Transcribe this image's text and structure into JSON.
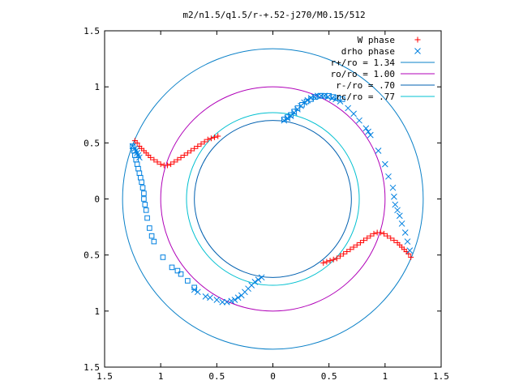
{
  "chart_data": {
    "type": "scatter",
    "title": "m2/n1.5/q1.5/r-+.52-j270/M0.15/512",
    "xlim": [
      -1.5,
      1.5
    ],
    "ylim": [
      -1.5,
      1.5
    ],
    "x_ticks": [
      -1.5,
      -1,
      -0.5,
      0,
      0.5,
      1,
      1.5
    ],
    "y_ticks": [
      -1.5,
      -1,
      -0.5,
      0,
      0.5,
      1,
      1.5
    ],
    "x_tick_labels": [
      "1.5",
      "1",
      "0.5",
      "0",
      "0.5",
      "1",
      "1.5"
    ],
    "y_tick_labels": [
      "1.5",
      "1",
      "0.5",
      "0",
      "0.5",
      "1",
      "1.5"
    ],
    "grid": false,
    "legend_position": "top-right",
    "series": [
      {
        "name": "W phase",
        "marker": "plus",
        "color": "#ff0000",
        "points": [
          [
            -1.23,
            0.52
          ],
          [
            -1.21,
            0.5
          ],
          [
            -1.19,
            0.47
          ],
          [
            -1.17,
            0.45
          ],
          [
            -1.15,
            0.43
          ],
          [
            -1.13,
            0.41
          ],
          [
            -1.11,
            0.39
          ],
          [
            -1.09,
            0.37
          ],
          [
            -1.06,
            0.35
          ],
          [
            -1.03,
            0.33
          ],
          [
            -1.0,
            0.31
          ],
          [
            -0.97,
            0.3
          ],
          [
            -0.94,
            0.3
          ],
          [
            -0.91,
            0.31
          ],
          [
            -0.88,
            0.33
          ],
          [
            -0.85,
            0.35
          ],
          [
            -0.82,
            0.37
          ],
          [
            -0.79,
            0.39
          ],
          [
            -0.76,
            0.41
          ],
          [
            -0.73,
            0.43
          ],
          [
            -0.7,
            0.45
          ],
          [
            -0.67,
            0.47
          ],
          [
            -0.64,
            0.49
          ],
          [
            -0.61,
            0.51
          ],
          [
            -0.58,
            0.53
          ],
          [
            -0.55,
            0.54
          ],
          [
            -0.52,
            0.55
          ],
          [
            -0.49,
            0.56
          ],
          [
            1.23,
            -0.52
          ],
          [
            1.21,
            -0.49
          ],
          [
            1.19,
            -0.47
          ],
          [
            1.17,
            -0.45
          ],
          [
            1.15,
            -0.43
          ],
          [
            1.13,
            -0.41
          ],
          [
            1.11,
            -0.39
          ],
          [
            1.08,
            -0.37
          ],
          [
            1.05,
            -0.35
          ],
          [
            1.02,
            -0.33
          ],
          [
            0.99,
            -0.31
          ],
          [
            0.96,
            -0.3
          ],
          [
            0.93,
            -0.3
          ],
          [
            0.9,
            -0.31
          ],
          [
            0.87,
            -0.33
          ],
          [
            0.84,
            -0.35
          ],
          [
            0.81,
            -0.37
          ],
          [
            0.78,
            -0.39
          ],
          [
            0.75,
            -0.41
          ],
          [
            0.72,
            -0.43
          ],
          [
            0.69,
            -0.45
          ],
          [
            0.66,
            -0.47
          ],
          [
            0.63,
            -0.49
          ],
          [
            0.6,
            -0.51
          ],
          [
            0.57,
            -0.53
          ],
          [
            0.54,
            -0.54
          ],
          [
            0.51,
            -0.55
          ],
          [
            0.48,
            -0.56
          ],
          [
            0.45,
            -0.57
          ]
        ]
      },
      {
        "name": "drho phase",
        "marker": "cross",
        "color": "#0080e0",
        "points": [
          [
            0.1,
            0.7
          ],
          [
            0.13,
            0.72
          ],
          [
            0.16,
            0.74
          ],
          [
            0.19,
            0.77
          ],
          [
            0.22,
            0.8
          ],
          [
            0.25,
            0.83
          ],
          [
            0.28,
            0.86
          ],
          [
            0.31,
            0.88
          ],
          [
            0.34,
            0.9
          ],
          [
            0.37,
            0.91
          ],
          [
            0.4,
            0.92
          ],
          [
            0.43,
            0.92
          ],
          [
            0.46,
            0.92
          ],
          [
            0.49,
            0.91
          ],
          [
            0.53,
            0.9
          ],
          [
            0.56,
            0.89
          ],
          [
            0.6,
            0.87
          ],
          [
            0.67,
            0.81
          ],
          [
            0.72,
            0.76
          ],
          [
            0.77,
            0.7
          ],
          [
            0.83,
            0.63
          ],
          [
            0.85,
            0.6
          ],
          [
            0.87,
            0.57
          ],
          [
            0.94,
            0.43
          ],
          [
            1.0,
            0.31
          ],
          [
            1.03,
            0.2
          ],
          [
            1.07,
            0.1
          ],
          [
            1.08,
            0.02
          ],
          [
            1.09,
            -0.05
          ],
          [
            1.11,
            -0.1
          ],
          [
            1.13,
            -0.15
          ],
          [
            1.15,
            -0.22
          ],
          [
            1.18,
            -0.3
          ],
          [
            1.2,
            -0.38
          ],
          [
            1.22,
            -0.46
          ],
          [
            -0.1,
            -0.7
          ],
          [
            -0.13,
            -0.72
          ],
          [
            -0.16,
            -0.74
          ],
          [
            -0.19,
            -0.77
          ],
          [
            -0.22,
            -0.8
          ],
          [
            -0.25,
            -0.83
          ],
          [
            -0.28,
            -0.86
          ],
          [
            -0.31,
            -0.88
          ],
          [
            -0.34,
            -0.9
          ],
          [
            -0.37,
            -0.91
          ],
          [
            -0.41,
            -0.92
          ],
          [
            -0.45,
            -0.92
          ],
          [
            -0.5,
            -0.9
          ],
          [
            -0.56,
            -0.88
          ],
          [
            -0.6,
            -0.87
          ],
          [
            -0.67,
            -0.83
          ],
          [
            -0.7,
            -0.81
          ],
          [
            -1.25,
            0.47
          ],
          [
            -1.23,
            0.45
          ],
          [
            -1.22,
            0.43
          ],
          [
            -1.21,
            0.41
          ],
          [
            -1.2,
            0.39
          ],
          [
            -1.19,
            0.37
          ]
        ]
      },
      {
        "name": "",
        "marker": "square",
        "color": "#0080e0",
        "points": [
          [
            -1.25,
            0.47
          ],
          [
            -1.24,
            0.43
          ],
          [
            -1.23,
            0.39
          ],
          [
            -1.22,
            0.35
          ],
          [
            -1.21,
            0.31
          ],
          [
            -1.2,
            0.27
          ],
          [
            -1.19,
            0.23
          ],
          [
            -1.18,
            0.19
          ],
          [
            -1.17,
            0.15
          ],
          [
            -1.16,
            0.1
          ],
          [
            -1.15,
            0.05
          ],
          [
            -1.15,
            0.0
          ],
          [
            -1.14,
            -0.05
          ],
          [
            -1.13,
            -0.1
          ],
          [
            -1.12,
            -0.17
          ],
          [
            -1.1,
            -0.26
          ],
          [
            -1.08,
            -0.33
          ],
          [
            -1.06,
            -0.38
          ],
          [
            -0.98,
            -0.52
          ],
          [
            -0.9,
            -0.61
          ],
          [
            -0.85,
            -0.64
          ],
          [
            -0.82,
            -0.67
          ],
          [
            -0.76,
            -0.73
          ],
          [
            -0.7,
            -0.79
          ],
          [
            0.1,
            0.71
          ],
          [
            0.13,
            0.73
          ],
          [
            0.16,
            0.75
          ],
          [
            0.19,
            0.78
          ],
          [
            0.22,
            0.81
          ],
          [
            0.26,
            0.84
          ],
          [
            0.3,
            0.87
          ],
          [
            0.34,
            0.89
          ],
          [
            0.38,
            0.91
          ],
          [
            0.42,
            0.92
          ],
          [
            0.46,
            0.92
          ],
          [
            0.5,
            0.92
          ],
          [
            0.54,
            0.91
          ],
          [
            0.58,
            0.9
          ],
          [
            0.62,
            0.89
          ]
        ]
      }
    ],
    "circles": [
      {
        "label": "r+/ro = 1.34",
        "radius": 1.34,
        "color": "#0a80c8"
      },
      {
        "label": "ro/ro = 1.00",
        "radius": 1.0,
        "color": "#b000b8"
      },
      {
        "label": "r-/ro = .70",
        "radius": 0.7,
        "color": "#0060b0"
      },
      {
        "label": "rc/ro = .77",
        "radius": 0.77,
        "color": "#00c0d0"
      }
    ]
  }
}
